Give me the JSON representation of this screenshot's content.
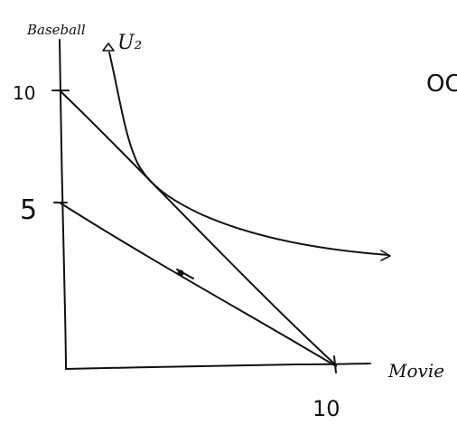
{
  "axes": {
    "y_label": "Baseball",
    "x_label": "Movie"
  },
  "ticks": {
    "y_10": "10",
    "y_5": "5",
    "x_10": "10"
  },
  "curve_label": "U₂",
  "partial_text": "OC"
}
